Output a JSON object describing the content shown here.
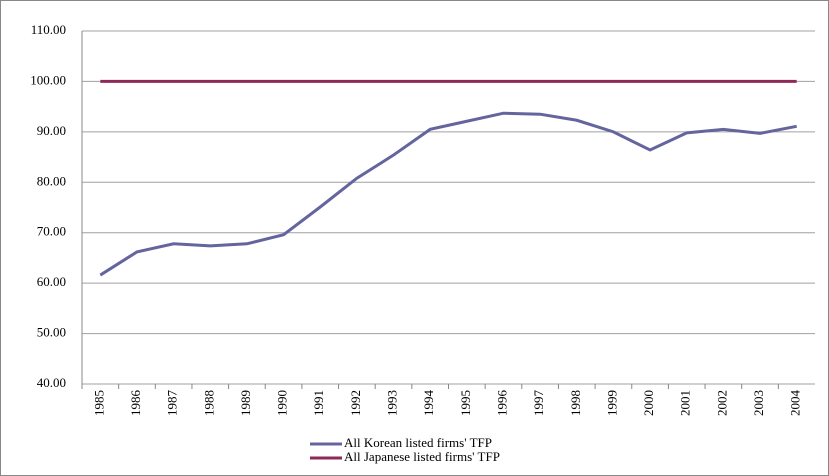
{
  "chart_data": {
    "type": "line",
    "categories": [
      "1985",
      "1986",
      "1987",
      "1988",
      "1989",
      "1990",
      "1991",
      "1992",
      "1993",
      "1994",
      "1995",
      "1996",
      "1997",
      "1998",
      "1999",
      "2000",
      "2001",
      "2002",
      "2003",
      "2004"
    ],
    "series": [
      {
        "name": "All Korean listed firms' TFP",
        "color": "#64649e",
        "values": [
          61.6,
          66.2,
          67.8,
          67.4,
          67.8,
          69.6,
          75.1,
          80.8,
          85.4,
          90.5,
          92.1,
          93.7,
          93.5,
          92.3,
          90.0,
          86.4,
          89.8,
          90.5,
          89.7,
          91.1
        ]
      },
      {
        "name": "All Japanese listed firms' TFP",
        "color": "#8e2a5a",
        "values": [
          100,
          100,
          100,
          100,
          100,
          100,
          100,
          100,
          100,
          100,
          100,
          100,
          100,
          100,
          100,
          100,
          100,
          100,
          100,
          100
        ]
      }
    ],
    "ylim": [
      40,
      110
    ],
    "yticks": [
      {
        "value": 40,
        "label": "40.00"
      },
      {
        "value": 50,
        "label": "50.00"
      },
      {
        "value": 60,
        "label": "60.00"
      },
      {
        "value": 70,
        "label": "70.00"
      },
      {
        "value": 80,
        "label": "80.00"
      },
      {
        "value": 90,
        "label": "90.00"
      },
      {
        "value": 100,
        "label": "100.00"
      },
      {
        "value": 110,
        "label": "110.00"
      }
    ],
    "grid": true
  }
}
